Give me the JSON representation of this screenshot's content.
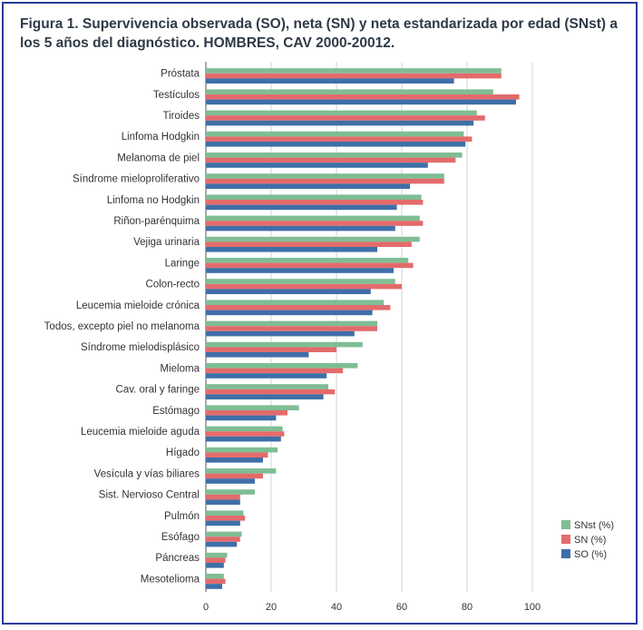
{
  "chart_data": {
    "type": "bar",
    "orientation": "horizontal",
    "title": "Figura 1. Supervivencia observada (SO), neta (SN) y neta estandarizada por edad (SNst) a los 5 años del diagnóstico. HOMBRES, CAV 2000-20012.",
    "xlabel": "",
    "ylabel": "",
    "xlim": [
      0,
      100
    ],
    "xticks": [
      "0",
      "20",
      "40",
      "60",
      "80",
      "100"
    ],
    "grid": true,
    "legend_position": "right",
    "categories": [
      "Próstata",
      "Testículos",
      "Tiroides",
      "Linfoma Hodgkin",
      "Melanoma de piel",
      "Síndrome mieloproliferativo",
      "Linfoma no Hodgkin",
      "Riñon-parénquima",
      "Vejiga urinaria",
      "Laringe",
      "Colon-recto",
      "Leucemia mieloide crónica",
      "Todos, excepto piel no melanoma",
      "Síndrome mielodisplásico",
      "Mieloma",
      "Cav. oral y faringe",
      "Estómago",
      "Leucemia mieloide aguda",
      "Hígado",
      "Vesícula y vías biliares",
      "Sist. Nervioso Central",
      "Pulmón",
      "Esófago",
      "Páncreas",
      "Mesotelioma"
    ],
    "series": [
      {
        "name": "SNst (%)",
        "color": "#7fbd94",
        "values": [
          90.5,
          88,
          83,
          79,
          78.5,
          73,
          66,
          65.5,
          65.5,
          62,
          58,
          54.5,
          52.5,
          48,
          46.5,
          37.5,
          28.5,
          23.5,
          22,
          21.5,
          15,
          11.5,
          11,
          6.5,
          5.5
        ]
      },
      {
        "name": "SN (%)",
        "color": "#e36b6b",
        "values": [
          90.5,
          96,
          85.5,
          81.5,
          76.5,
          73,
          66.5,
          66.5,
          63,
          63.5,
          60,
          56.5,
          52.5,
          40,
          42,
          39.5,
          25,
          24,
          19,
          17.5,
          10.5,
          12,
          10.5,
          6,
          6
        ]
      },
      {
        "name": "SO (%)",
        "color": "#3f6fa8",
        "values": [
          76,
          95,
          82,
          79.5,
          68,
          62.5,
          58.5,
          58,
          52.5,
          57.5,
          50.5,
          51,
          45.5,
          31.5,
          37,
          36,
          21.5,
          23,
          17.5,
          15,
          10.5,
          10.5,
          9.5,
          5.5,
          5
        ]
      }
    ]
  }
}
